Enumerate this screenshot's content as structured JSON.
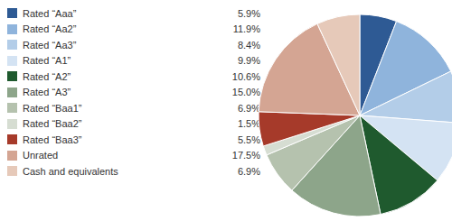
{
  "chart_data": {
    "type": "pie",
    "categories": [
      "Rated “Aaa”",
      "Rated “Aa2”",
      "Rated “Aa3”",
      "Rated “A1”",
      "Rated “A2”",
      "Rated “A3”",
      "Rated “Baa1”",
      "Rated “Baa2”",
      "Rated “Baa3”",
      "Unrated",
      "Cash and equivalents"
    ],
    "values": [
      5.9,
      11.9,
      8.4,
      9.9,
      10.6,
      15.0,
      6.9,
      1.5,
      5.5,
      17.5,
      6.9
    ],
    "value_labels": [
      "5.9%",
      "11.9%",
      "8.4%",
      "9.9%",
      "10.6%",
      "15.0%",
      "6.9%",
      "1.5%",
      "5.5%",
      "17.5%",
      "6.9%"
    ],
    "colors": [
      "#2e5a94",
      "#8fb4dc",
      "#b3cde8",
      "#d4e3f3",
      "#1f5a2e",
      "#8da58a",
      "#b5c2ae",
      "#d6ddd2",
      "#a63a2a",
      "#d4a593",
      "#e6c9b9"
    ],
    "legend": "left"
  }
}
